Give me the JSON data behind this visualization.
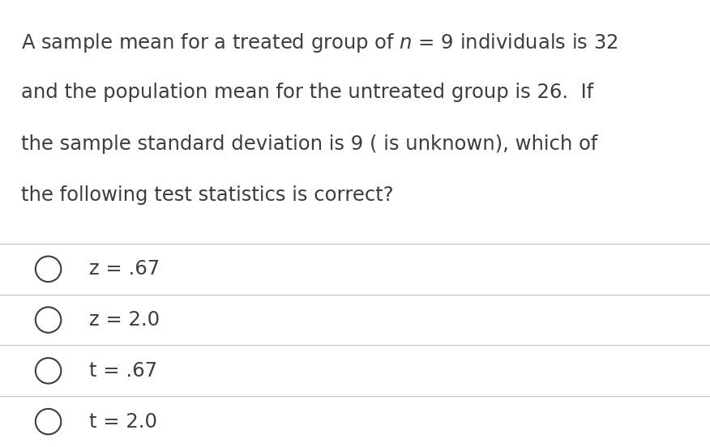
{
  "background_color": "#ffffff",
  "question_lines": [
    "A sample mean for a treated group of $\\it{n}$ = 9 individuals is 32",
    "and the population mean for the untreated group is 26.  If",
    "the sample standard deviation is 9 ( is unknown), which of",
    "the following test statistics is correct?"
  ],
  "options": [
    "z = .67",
    "z = 2.0",
    "t = .67",
    "t = 2.0"
  ],
  "text_color": "#3d3d3d",
  "line_color": "#cccccc",
  "font_size_question": 17.5,
  "font_size_options": 17.5,
  "fig_width": 8.76,
  "fig_height": 5.52
}
